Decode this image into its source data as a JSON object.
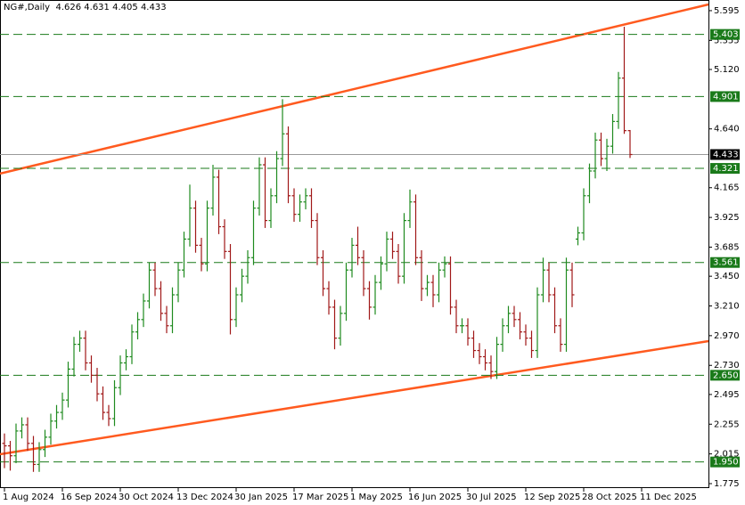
{
  "chart_data": {
    "type": "ohlc",
    "title": "NG#,Daily",
    "categories": [
      "1 Aug 2024",
      null,
      null,
      null,
      null,
      null,
      null,
      null,
      null,
      null,
      "16 Sep 2024",
      null,
      null,
      null,
      null,
      null,
      null,
      null,
      null,
      null,
      "30 Oct 2024",
      null,
      null,
      null,
      null,
      null,
      null,
      null,
      null,
      null,
      "13 Dec 2024",
      null,
      null,
      null,
      null,
      null,
      null,
      null,
      null,
      null,
      "30 Jan 2025",
      null,
      null,
      null,
      null,
      null,
      null,
      null,
      null,
      null,
      "17 Mar 2025",
      null,
      null,
      null,
      null,
      null,
      null,
      null,
      null,
      null,
      "1 May 2025",
      null,
      null,
      null,
      null,
      null,
      null,
      null,
      null,
      null,
      "16 Jun 2025",
      null,
      null,
      null,
      null,
      null,
      null,
      null,
      null,
      null,
      "30 Jul 2025",
      null,
      null,
      null,
      null,
      null,
      null,
      null,
      null,
      null,
      "12 Sep 2025",
      null,
      null,
      null,
      null,
      null,
      null,
      null,
      null,
      null,
      "28 Oct 2025",
      null,
      null,
      null,
      null,
      null,
      null,
      null,
      null,
      null,
      "11 Dec 2025"
    ],
    "open": [
      2.1,
      2.08,
      2.0,
      2.2,
      2.25,
      2.1,
      1.93,
      2.05,
      2.15,
      2.28,
      2.35,
      2.45,
      2.7,
      2.9,
      2.95,
      2.75,
      2.65,
      2.5,
      2.35,
      2.3,
      2.55,
      2.75,
      2.8,
      3.0,
      3.1,
      3.25,
      3.5,
      3.35,
      3.15,
      3.05,
      3.3,
      3.5,
      3.75,
      4.0,
      3.7,
      3.55,
      4.0,
      4.25,
      3.85,
      3.65,
      3.1,
      3.3,
      3.45,
      3.6,
      4.0,
      4.35,
      3.9,
      4.1,
      4.4,
      4.6,
      4.1,
      3.95,
      4.05,
      4.1,
      3.9,
      3.6,
      3.35,
      3.2,
      2.95,
      3.15,
      3.5,
      3.7,
      3.6,
      3.35,
      3.2,
      3.4,
      3.55,
      3.75,
      3.65,
      3.45,
      3.9,
      4.05,
      3.6,
      3.35,
      3.4,
      3.3,
      3.5,
      3.55,
      3.2,
      3.05,
      3.05,
      2.95,
      2.85,
      2.8,
      2.75,
      2.68,
      2.9,
      3.05,
      3.15,
      3.1,
      3.0,
      2.95,
      2.85,
      3.3,
      3.5,
      3.3,
      3.05,
      2.9,
      3.5,
      3.75,
      3.8,
      4.1,
      4.3,
      4.55,
      4.4,
      4.5,
      4.7,
      5.05,
      4.626,
      null,
      null
    ],
    "high": [
      2.18,
      2.12,
      2.26,
      2.31,
      2.31,
      2.16,
      2.11,
      2.21,
      2.34,
      2.41,
      2.51,
      2.76,
      2.96,
      3.01,
      3.01,
      2.81,
      2.71,
      2.56,
      2.41,
      2.61,
      2.81,
      2.86,
      3.06,
      3.16,
      3.31,
      3.56,
      3.56,
      3.41,
      3.21,
      3.36,
      3.56,
      3.81,
      4.19,
      4.06,
      3.76,
      4.06,
      4.35,
      4.31,
      3.91,
      3.71,
      3.36,
      3.51,
      3.66,
      4.06,
      4.41,
      4.41,
      4.16,
      4.46,
      4.88,
      4.66,
      4.16,
      4.11,
      4.16,
      4.16,
      3.96,
      3.66,
      3.41,
      3.26,
      3.21,
      3.56,
      3.76,
      3.85,
      3.66,
      3.41,
      3.46,
      3.61,
      3.81,
      3.81,
      3.71,
      3.96,
      4.15,
      4.11,
      3.66,
      3.46,
      3.46,
      3.56,
      3.61,
      3.61,
      3.26,
      3.11,
      3.11,
      3.01,
      2.91,
      2.86,
      2.81,
      2.96,
      3.11,
      3.21,
      3.21,
      3.16,
      3.06,
      3.01,
      3.36,
      3.6,
      3.56,
      3.36,
      3.11,
      3.6,
      3.56,
      3.85,
      4.16,
      4.36,
      4.61,
      4.61,
      4.56,
      4.76,
      5.1,
      5.465,
      4.631,
      null,
      null
    ],
    "low": [
      1.9,
      1.88,
      1.94,
      2.14,
      2.04,
      1.87,
      1.87,
      1.99,
      2.09,
      2.22,
      2.29,
      2.39,
      2.64,
      2.84,
      2.69,
      2.59,
      2.44,
      2.29,
      2.24,
      2.24,
      2.49,
      2.69,
      2.74,
      2.94,
      3.04,
      3.19,
      3.29,
      3.09,
      2.99,
      2.99,
      3.24,
      3.44,
      3.69,
      3.64,
      3.49,
      3.49,
      3.94,
      3.79,
      3.59,
      2.98,
      3.04,
      3.24,
      3.39,
      3.54,
      3.94,
      3.84,
      3.84,
      4.04,
      4.34,
      4.04,
      3.89,
      3.89,
      3.99,
      3.84,
      3.54,
      3.29,
      3.14,
      2.86,
      2.89,
      3.09,
      3.44,
      3.54,
      3.29,
      3.1,
      3.14,
      3.34,
      3.49,
      3.59,
      3.39,
      3.39,
      3.84,
      3.54,
      3.25,
      3.29,
      3.2,
      3.24,
      3.44,
      3.14,
      2.99,
      2.99,
      2.89,
      2.79,
      2.74,
      2.69,
      2.62,
      2.62,
      2.84,
      2.99,
      3.04,
      2.94,
      2.89,
      2.79,
      2.79,
      3.24,
      3.24,
      2.99,
      2.84,
      2.84,
      3.2,
      3.7,
      3.74,
      4.04,
      4.24,
      4.34,
      4.3,
      4.44,
      4.64,
      4.6,
      4.405,
      null,
      null
    ],
    "close": [
      2.08,
      2.0,
      2.2,
      2.25,
      2.1,
      1.93,
      2.05,
      2.15,
      2.28,
      2.35,
      2.45,
      2.7,
      2.9,
      2.95,
      2.75,
      2.65,
      2.5,
      2.35,
      2.3,
      2.55,
      2.75,
      2.8,
      3.0,
      3.1,
      3.25,
      3.5,
      3.35,
      3.15,
      3.05,
      3.3,
      3.5,
      3.75,
      4.0,
      3.7,
      3.55,
      4.0,
      4.25,
      3.85,
      3.65,
      3.1,
      3.3,
      3.45,
      3.6,
      4.0,
      4.35,
      3.9,
      4.1,
      4.4,
      4.6,
      4.1,
      3.95,
      4.05,
      4.1,
      3.9,
      3.6,
      3.35,
      3.2,
      2.95,
      3.15,
      3.5,
      3.7,
      3.6,
      3.35,
      3.2,
      3.4,
      3.55,
      3.75,
      3.65,
      3.45,
      3.9,
      4.05,
      3.6,
      3.35,
      3.4,
      3.3,
      3.5,
      3.55,
      3.2,
      3.05,
      3.05,
      2.95,
      2.85,
      2.8,
      2.75,
      2.68,
      2.9,
      3.05,
      3.15,
      3.1,
      3.0,
      2.95,
      2.85,
      3.3,
      3.5,
      3.3,
      3.05,
      2.9,
      3.5,
      3.3,
      3.8,
      4.1,
      4.3,
      4.55,
      4.4,
      4.5,
      4.7,
      5.05,
      4.626,
      4.433,
      null,
      null
    ],
    "up_color": "#1f8a1f",
    "down_color": "#a01818",
    "ylim": [
      1.739,
      5.681
    ],
    "yticks": [
      5.595,
      5.355,
      {
        "value": 5.12,
        "label": "5.120"
      },
      {
        "value": 4.64,
        "label": "4.640"
      },
      4.165,
      3.925,
      3.685,
      {
        "value": 3.45,
        "label": "3.450"
      },
      {
        "value": 3.21,
        "label": "3.210"
      },
      {
        "value": 2.97,
        "label": "2.970"
      },
      {
        "value": 2.73,
        "label": "2.730"
      },
      2.495,
      2.255,
      2.015,
      1.775
    ],
    "levels": [
      5.403,
      4.901,
      4.321,
      3.561,
      {
        "value": 2.65,
        "label": "2.650"
      },
      {
        "value": 1.95,
        "label": "1.950"
      }
    ],
    "level_color": "#1a7a1a",
    "last_price": 4.433,
    "last_price_color": "#999999",
    "trend_lines": [
      {
        "start": 4.279,
        "end": 5.645
      },
      {
        "start": 2.012,
        "end": 2.926
      }
    ],
    "trend_color": "#ff5a1f"
  }
}
